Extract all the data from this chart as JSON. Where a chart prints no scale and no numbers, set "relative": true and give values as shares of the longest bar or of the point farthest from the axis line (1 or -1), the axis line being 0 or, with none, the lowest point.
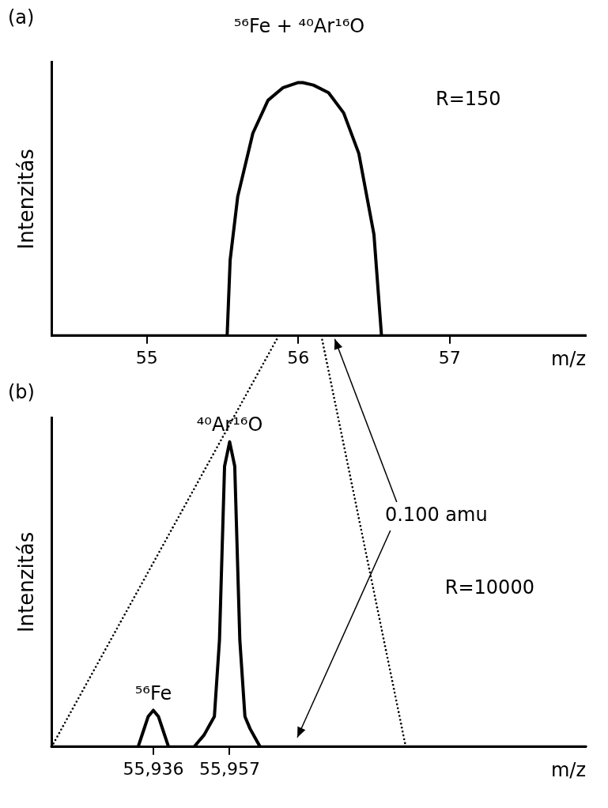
{
  "chart_data": [
    {
      "type": "line",
      "title": "⁵⁶Fe + ⁴⁰Ar¹⁶O",
      "xlabel": "m/z",
      "ylabel": "Intenzitás",
      "relative": true,
      "color": "#000000",
      "grid": false,
      "legend": false,
      "marker": "none",
      "line_style": "solid",
      "xlim": [
        54.37,
        57.9
      ],
      "xticks": [
        55,
        56,
        57
      ],
      "x": [
        54.37,
        55.53,
        55.55,
        55.6,
        55.7,
        55.8,
        55.9,
        56.0,
        56.03,
        56.1,
        56.2,
        56.3,
        56.4,
        56.5,
        56.55,
        57.9
      ],
      "values": [
        0,
        0,
        0.3,
        0.55,
        0.8,
        0.93,
        0.98,
        1.0,
        1.0,
        0.99,
        0.96,
        0.88,
        0.72,
        0.4,
        0,
        0
      ],
      "annotations": [
        "(a)",
        "R=150"
      ]
    },
    {
      "type": "line",
      "xlabel": "m/z",
      "ylabel": "Intenzitás",
      "relative": true,
      "color": "#000000",
      "grid": false,
      "legend": false,
      "marker": "none",
      "line_style": "solid",
      "categories": [
        null,
        null,
        null,
        null,
        null,
        null,
        null,
        null,
        null,
        null,
        null,
        null,
        null,
        null,
        null,
        null,
        null,
        null,
        null,
        null,
        "55,936",
        null,
        null,
        null,
        null,
        null,
        null,
        null,
        null,
        null,
        null,
        null,
        null,
        null,
        null,
        "55,957",
        null,
        null,
        null,
        null,
        null,
        null,
        null,
        null,
        null,
        null,
        null,
        null,
        null,
        null,
        null,
        null,
        null,
        null,
        null,
        null,
        null,
        null,
        null,
        null,
        null,
        null,
        null,
        null,
        null,
        null,
        null,
        null,
        null,
        null,
        null,
        null,
        null,
        null,
        null,
        null,
        null,
        null,
        null,
        null,
        null,
        null,
        null,
        null,
        null,
        null,
        null,
        null,
        null,
        null,
        null,
        null,
        null,
        null,
        null,
        null,
        null,
        null,
        null,
        null,
        null,
        null,
        null,
        null,
        null,
        null
      ],
      "values": [
        0,
        0,
        0,
        0,
        0,
        0,
        0,
        0,
        0,
        0,
        0,
        0,
        0,
        0,
        0,
        0,
        0,
        0,
        0.05,
        0.1,
        0.12,
        0.1,
        0.05,
        0,
        0,
        0,
        0,
        0,
        0,
        0.02,
        0.04,
        0.07,
        0.1,
        0.35,
        0.92,
        1,
        0.92,
        0.35,
        0.1,
        0.06,
        0.03,
        0,
        0,
        0,
        0,
        0,
        0,
        0,
        0,
        0,
        0,
        0,
        0,
        0,
        0,
        0,
        0,
        0,
        0,
        0,
        0,
        0,
        0,
        0,
        0,
        0,
        0,
        0,
        0,
        0,
        0,
        0,
        0,
        0,
        0,
        0,
        0,
        0,
        0,
        0,
        0,
        0,
        0,
        0,
        0,
        0,
        0,
        0,
        0,
        0,
        0,
        0,
        0,
        0,
        0,
        0,
        0,
        0,
        0,
        0,
        0,
        0,
        0,
        0,
        0,
        0
      ],
      "annotations": [
        "(b)",
        "0.100 amu",
        "R=10000",
        {
          "text": "⁴⁰Ar¹⁶O",
          "x": "55,957",
          "y": 1
        },
        {
          "text": "⁵⁶Fe",
          "x": "55,936",
          "y": 0.12
        }
      ]
    }
  ]
}
